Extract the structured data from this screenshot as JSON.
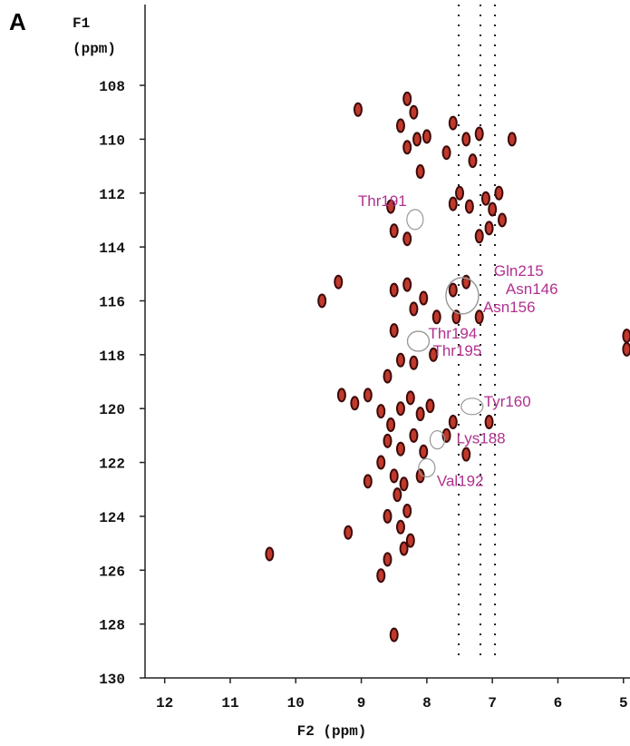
{
  "chart_data": {
    "type": "scatter",
    "panel_label": "A",
    "xlabel": "F2 (ppm)",
    "ylabel": [
      "F1",
      "(ppm)"
    ],
    "xlim": [
      12.3,
      4.9
    ],
    "ylim": [
      130,
      105
    ],
    "xticks": [
      12,
      11,
      10,
      9,
      8,
      7,
      6,
      5
    ],
    "yticks": [
      108,
      110,
      112,
      114,
      116,
      118,
      120,
      122,
      124,
      126,
      128,
      130
    ],
    "series": [
      {
        "color": "#3b0a0a",
        "x": [
          8.3,
          8.2,
          8.4,
          9.05,
          8.15,
          8.3,
          8.1,
          7.7,
          7.4,
          7.2,
          7.3,
          7.5,
          7.35,
          7.6,
          6.9,
          7.0,
          6.85,
          6.7,
          7.1,
          7.05,
          8.5,
          8.55,
          7.2,
          8.0,
          7.6,
          8.3,
          9.6,
          9.35,
          8.5,
          8.3,
          8.2,
          8.05,
          7.85,
          7.6,
          7.4,
          7.55,
          7.2,
          8.5,
          8.4,
          8.6,
          8.2,
          7.9,
          9.3,
          9.1,
          8.9,
          8.7,
          8.55,
          8.4,
          8.25,
          8.1,
          7.95,
          8.6,
          8.4,
          8.2,
          8.05,
          8.7,
          8.5,
          8.35,
          8.1,
          8.9,
          8.45,
          8.3,
          8.6,
          8.4,
          8.25,
          9.2,
          10.4,
          8.6,
          8.35,
          8.7,
          8.5,
          7.7,
          7.6,
          7.4,
          7.05,
          4.95,
          4.95
        ],
        "values": [
          108.5,
          109.0,
          109.5,
          108.9,
          110.0,
          110.3,
          111.2,
          110.5,
          110.0,
          109.8,
          110.8,
          112.0,
          112.5,
          112.4,
          112.0,
          112.6,
          113.0,
          110.0,
          112.2,
          113.3,
          113.4,
          112.5,
          113.6,
          109.9,
          109.4,
          113.7,
          116.0,
          115.3,
          115.6,
          115.4,
          116.3,
          115.9,
          116.6,
          115.6,
          115.3,
          116.6,
          116.6,
          117.1,
          118.2,
          118.8,
          118.3,
          118.0,
          119.5,
          119.8,
          119.5,
          120.1,
          120.6,
          120.0,
          119.6,
          120.2,
          119.9,
          121.2,
          121.5,
          121.0,
          121.6,
          122.0,
          122.5,
          122.8,
          122.5,
          122.7,
          123.2,
          123.8,
          124.0,
          124.4,
          124.9,
          124.6,
          125.4,
          125.6,
          125.2,
          126.2,
          128.4,
          121.0,
          120.5,
          121.7,
          120.5,
          117.3,
          117.8
        ]
      }
    ],
    "annotations": [
      {
        "label": "Thr191",
        "x": 8.18,
        "y": 112.98
      },
      {
        "label": "Gln215",
        "x": 7.46,
        "y": 115.81
      },
      {
        "label": "Asn146",
        "x": 7.46,
        "y": 115.81
      },
      {
        "label": "Asn156",
        "x": 7.46,
        "y": 115.81
      },
      {
        "label": "Thr194",
        "x": 8.13,
        "y": 117.5
      },
      {
        "label": "Thr195",
        "x": 8.13,
        "y": 117.5
      },
      {
        "label": "Tyr160",
        "x": 7.31,
        "y": 119.92
      },
      {
        "label": "Lys188",
        "x": 7.84,
        "y": 121.16
      },
      {
        "label": "Val192",
        "x": 8.0,
        "y": 122.2
      }
    ]
  }
}
